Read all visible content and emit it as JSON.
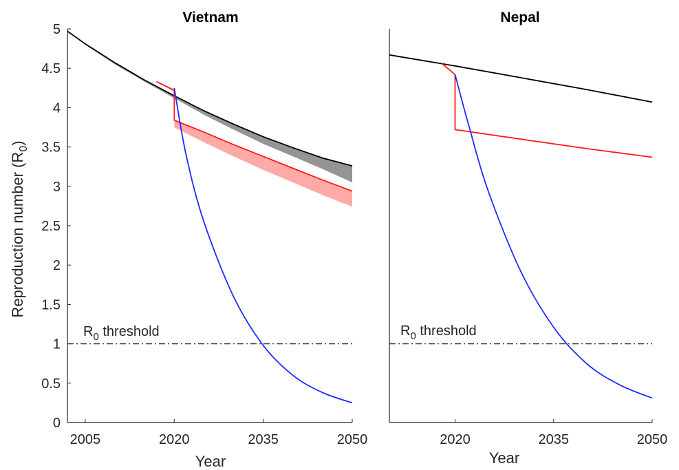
{
  "colors": {
    "no_intervention": "#000000",
    "intervention_red": "#ff1a1a",
    "intervention_blue": "#1f2bff",
    "band_gray": "#8a8a8a",
    "band_red": "#ff9a9a",
    "band_blue": "#8a8ff5"
  },
  "shared": {
    "ylabel": "Reproduction number (R",
    "ylabel_sub": "0",
    "ylabel_close": ")",
    "threshold_label_r": "R",
    "threshold_label_sub": "0",
    "threshold_label_rest": " threshold",
    "xlabel": "Year"
  },
  "chart_data": [
    {
      "type": "line",
      "title": "Vietnam",
      "xlabel": "Year",
      "ylabel": "Reproduction number (R0)",
      "xlim": [
        2002,
        2050
      ],
      "ylim": [
        0,
        5
      ],
      "xticks": [
        "2005",
        "2020",
        "2035",
        "2050"
      ],
      "yticks": [
        "0",
        "0.5",
        "1",
        "1.5",
        "2",
        "2.5",
        "3",
        "3.5",
        "4",
        "4.5",
        "5"
      ],
      "threshold": 1,
      "series": [
        {
          "color": "black",
          "x": [
            2002,
            2005,
            2010,
            2015,
            2020,
            2025,
            2030,
            2035,
            2040,
            2045,
            2050
          ],
          "y": [
            4.97,
            4.81,
            4.57,
            4.35,
            4.15,
            3.96,
            3.79,
            3.63,
            3.49,
            3.36,
            3.26
          ],
          "band_lower": [
            4.97,
            4.8,
            4.55,
            4.33,
            4.12,
            3.91,
            3.72,
            3.54,
            3.38,
            3.22,
            3.05
          ]
        },
        {
          "color": "red",
          "x": [
            2017,
            2020,
            2020,
            2025,
            2030,
            2035,
            2040,
            2045,
            2050
          ],
          "y": [
            4.33,
            4.22,
            3.84,
            3.69,
            3.53,
            3.38,
            3.23,
            3.08,
            2.94
          ],
          "band_lower": [
            4.33,
            4.2,
            3.75,
            3.56,
            3.38,
            3.21,
            3.05,
            2.89,
            2.74
          ]
        },
        {
          "color": "blue",
          "x": [
            2020,
            2022,
            2025,
            2030,
            2035,
            2040,
            2045,
            2050
          ],
          "y": [
            4.25,
            3.4,
            2.55,
            1.6,
            0.98,
            0.6,
            0.38,
            0.25
          ]
        }
      ]
    },
    {
      "type": "line",
      "title": "Nepal",
      "xlabel": "Year",
      "xlim": [
        2010,
        2050
      ],
      "ylim": [
        0,
        5
      ],
      "xticks": [
        "2020",
        "2035",
        "2050"
      ],
      "threshold": 1,
      "series": [
        {
          "color": "black",
          "x": [
            2010,
            2020,
            2030,
            2040,
            2050
          ],
          "y": [
            4.67,
            4.53,
            4.38,
            4.23,
            4.07
          ]
        },
        {
          "color": "red",
          "x": [
            2018,
            2020,
            2020,
            2030,
            2040,
            2050
          ],
          "y": [
            4.56,
            4.42,
            3.72,
            3.6,
            3.48,
            3.37
          ]
        },
        {
          "color": "blue",
          "x": [
            2020,
            2022,
            2025,
            2030,
            2035,
            2040,
            2045,
            2050
          ],
          "y": [
            4.42,
            3.8,
            2.95,
            1.92,
            1.21,
            0.75,
            0.48,
            0.31
          ]
        }
      ]
    }
  ]
}
